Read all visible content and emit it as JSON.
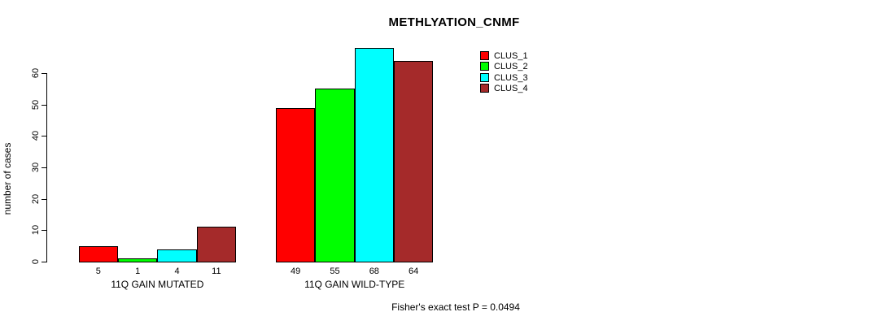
{
  "chart_data": {
    "type": "bar",
    "title": "METHLYATION_CNMF",
    "xlabel": "",
    "ylabel": "number of cases",
    "ylim": [
      0,
      68
    ],
    "yticks": [
      0,
      10,
      20,
      30,
      40,
      50,
      60
    ],
    "grid": false,
    "legend_position": "top-right",
    "categories": [
      "11Q GAIN MUTATED",
      "11Q GAIN WILD-TYPE"
    ],
    "series": [
      {
        "name": "CLUS_1",
        "color": "#FF0000",
        "values": [
          5,
          49
        ]
      },
      {
        "name": "CLUS_2",
        "color": "#00FF00",
        "values": [
          1,
          55
        ]
      },
      {
        "name": "CLUS_3",
        "color": "#00FFFF",
        "values": [
          4,
          68
        ]
      },
      {
        "name": "CLUS_4",
        "color": "#A52A2A",
        "values": [
          11,
          64
        ]
      }
    ],
    "bar_value_labels": [
      [
        "5",
        "1",
        "4",
        "11"
      ],
      [
        "49",
        "55",
        "68",
        "64"
      ]
    ],
    "annotation": "Fisher's exact test P = 0.0494"
  }
}
